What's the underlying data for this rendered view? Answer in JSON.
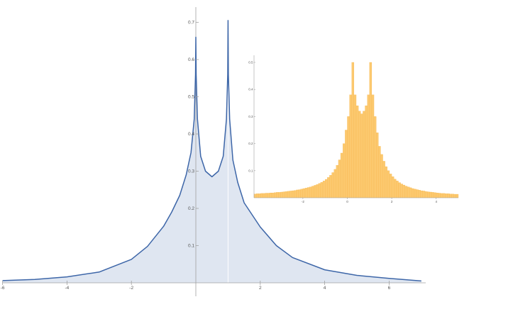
{
  "colors": {
    "main_line": "#3d66a8",
    "main_fill": "#dfe6f1",
    "hist_fill": "#fcc96f",
    "hist_edge": "#f5b54a",
    "axis": "#a0a0a0"
  },
  "chart_data": [
    {
      "type": "area",
      "description_of_series": "density curve with two peaks at x=0 and x=1",
      "xlim": [
        -6,
        7
      ],
      "ylim": [
        0,
        0.74
      ],
      "x_ticks": [
        -6,
        -4,
        -2,
        2,
        4,
        6
      ],
      "x_tick_labels": [
        "-6",
        "-4",
        "-2",
        "2",
        "4",
        "6"
      ],
      "y_ticks": [
        0.1,
        0.2,
        0.3,
        0.4,
        0.5,
        0.6,
        0.7
      ],
      "y_tick_labels": [
        "0.1",
        "0.2",
        "0.3",
        "0.4",
        "0.5",
        "0.6",
        "0.7"
      ],
      "x": [
        -6,
        -5,
        -4,
        -3,
        -2,
        -1.5,
        -1,
        -0.75,
        -0.5,
        -0.3,
        -0.15,
        -0.05,
        -0.01,
        0,
        0.01,
        0.05,
        0.15,
        0.3,
        0.5,
        0.7,
        0.85,
        0.95,
        0.99,
        1,
        1.01,
        1.05,
        1.15,
        1.3,
        1.5,
        2,
        2.5,
        3,
        4,
        5,
        6,
        7
      ],
      "y": [
        0.006,
        0.009,
        0.016,
        0.029,
        0.063,
        0.098,
        0.152,
        0.19,
        0.235,
        0.29,
        0.35,
        0.44,
        0.56,
        0.66,
        0.56,
        0.44,
        0.34,
        0.3,
        0.285,
        0.3,
        0.34,
        0.44,
        0.56,
        0.705,
        0.56,
        0.44,
        0.33,
        0.27,
        0.215,
        0.15,
        0.1,
        0.068,
        0.035,
        0.02,
        0.012,
        0.005
      ],
      "grid": false
    },
    {
      "type": "bar",
      "subtype": "histogram",
      "xlim": [
        -4.2,
        5.0
      ],
      "ylim": [
        0,
        0.5
      ],
      "x_ticks": [
        -2,
        0,
        2,
        4
      ],
      "x_tick_labels": [
        "-2",
        "0",
        "2",
        "4"
      ],
      "y_ticks": [
        0.1,
        0.2,
        0.3,
        0.4,
        0.5
      ],
      "y_tick_labels": [
        "0.1",
        "0.2",
        "0.3",
        "0.4",
        "0.5"
      ],
      "bin_width": 0.1,
      "bin_start": -4.2,
      "values": [
        0.014,
        0.015,
        0.015,
        0.016,
        0.016,
        0.017,
        0.017,
        0.018,
        0.018,
        0.019,
        0.02,
        0.02,
        0.021,
        0.022,
        0.023,
        0.024,
        0.025,
        0.026,
        0.027,
        0.029,
        0.03,
        0.032,
        0.034,
        0.036,
        0.038,
        0.04,
        0.043,
        0.046,
        0.049,
        0.053,
        0.057,
        0.062,
        0.068,
        0.075,
        0.083,
        0.093,
        0.105,
        0.12,
        0.14,
        0.165,
        0.2,
        0.25,
        0.3,
        0.38,
        0.5,
        0.38,
        0.34,
        0.32,
        0.31,
        0.32,
        0.34,
        0.38,
        0.5,
        0.38,
        0.3,
        0.24,
        0.19,
        0.16,
        0.135,
        0.115,
        0.1,
        0.088,
        0.078,
        0.069,
        0.062,
        0.056,
        0.051,
        0.047,
        0.043,
        0.04,
        0.037,
        0.034,
        0.032,
        0.03,
        0.028,
        0.026,
        0.025,
        0.023,
        0.022,
        0.021,
        0.02,
        0.019,
        0.018,
        0.017,
        0.016,
        0.016,
        0.015,
        0.015,
        0.014,
        0.014,
        0.013,
        0.013
      ],
      "grid": false
    }
  ]
}
